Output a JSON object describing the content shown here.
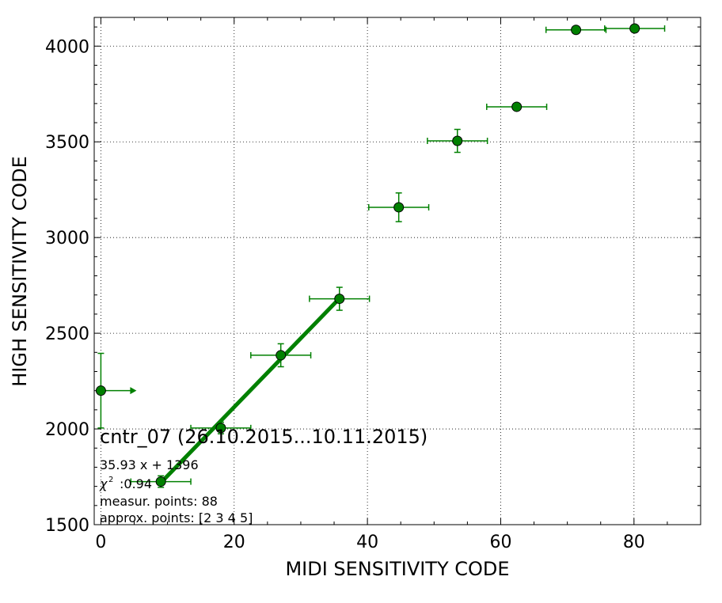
{
  "chart_data": {
    "type": "scatter",
    "title": "",
    "xlabel": "MIDI SENSITIVITY CODE",
    "ylabel": "HIGH SENSITIVITY CODE",
    "xlim": [
      -1,
      90
    ],
    "ylim": [
      1500,
      4150
    ],
    "xticks": [
      0,
      20,
      40,
      60,
      80
    ],
    "yticks": [
      1500,
      2000,
      2500,
      3000,
      3500,
      4000
    ],
    "xtick_labels": [
      "0",
      "20",
      "40",
      "60",
      "80"
    ],
    "ytick_labels": [
      "1500",
      "2000",
      "2500",
      "3000",
      "3500",
      "4000"
    ],
    "grid": true,
    "colors": {
      "series": "#008000",
      "marker_fill": "#008000",
      "marker_edge": "#000000"
    },
    "points": [
      {
        "x": 0,
        "y": 2200,
        "xerr_left": 0,
        "xerr_right": 0,
        "yerr": 195,
        "arrow_right": true
      },
      {
        "x": 9,
        "y": 1725,
        "xerr": 4.5,
        "yerr": 30
      },
      {
        "x": 18,
        "y": 2005,
        "xerr": 4.5,
        "yerr": 30
      },
      {
        "x": 27,
        "y": 2385,
        "xerr": 4.5,
        "yerr": 60
      },
      {
        "x": 35.8,
        "y": 2680,
        "xerr": 4.5,
        "yerr": 60
      },
      {
        "x": 44.7,
        "y": 3158,
        "xerr": 4.5,
        "yerr": 75
      },
      {
        "x": 53.5,
        "y": 3505,
        "xerr": 4.5,
        "yerr": 60
      },
      {
        "x": 62.4,
        "y": 3683,
        "xerr": 4.5,
        "yerr": 0
      },
      {
        "x": 71.3,
        "y": 4085,
        "xerr": 4.5,
        "yerr": 0
      },
      {
        "x": 80.1,
        "y": 4092,
        "xerr": 4.5,
        "yerr": 0
      }
    ],
    "fit_line": {
      "x": [
        9,
        35.8
      ],
      "y": [
        1719,
        2682
      ]
    },
    "annotations": {
      "main": "cntr_07 (26.10.2015...10.11.2015)",
      "fit": "35.93 x + 1396",
      "chi_value": ":0.94",
      "points": "measur. points: 88",
      "approx": "approx. points: [2 3 4 5]"
    }
  }
}
